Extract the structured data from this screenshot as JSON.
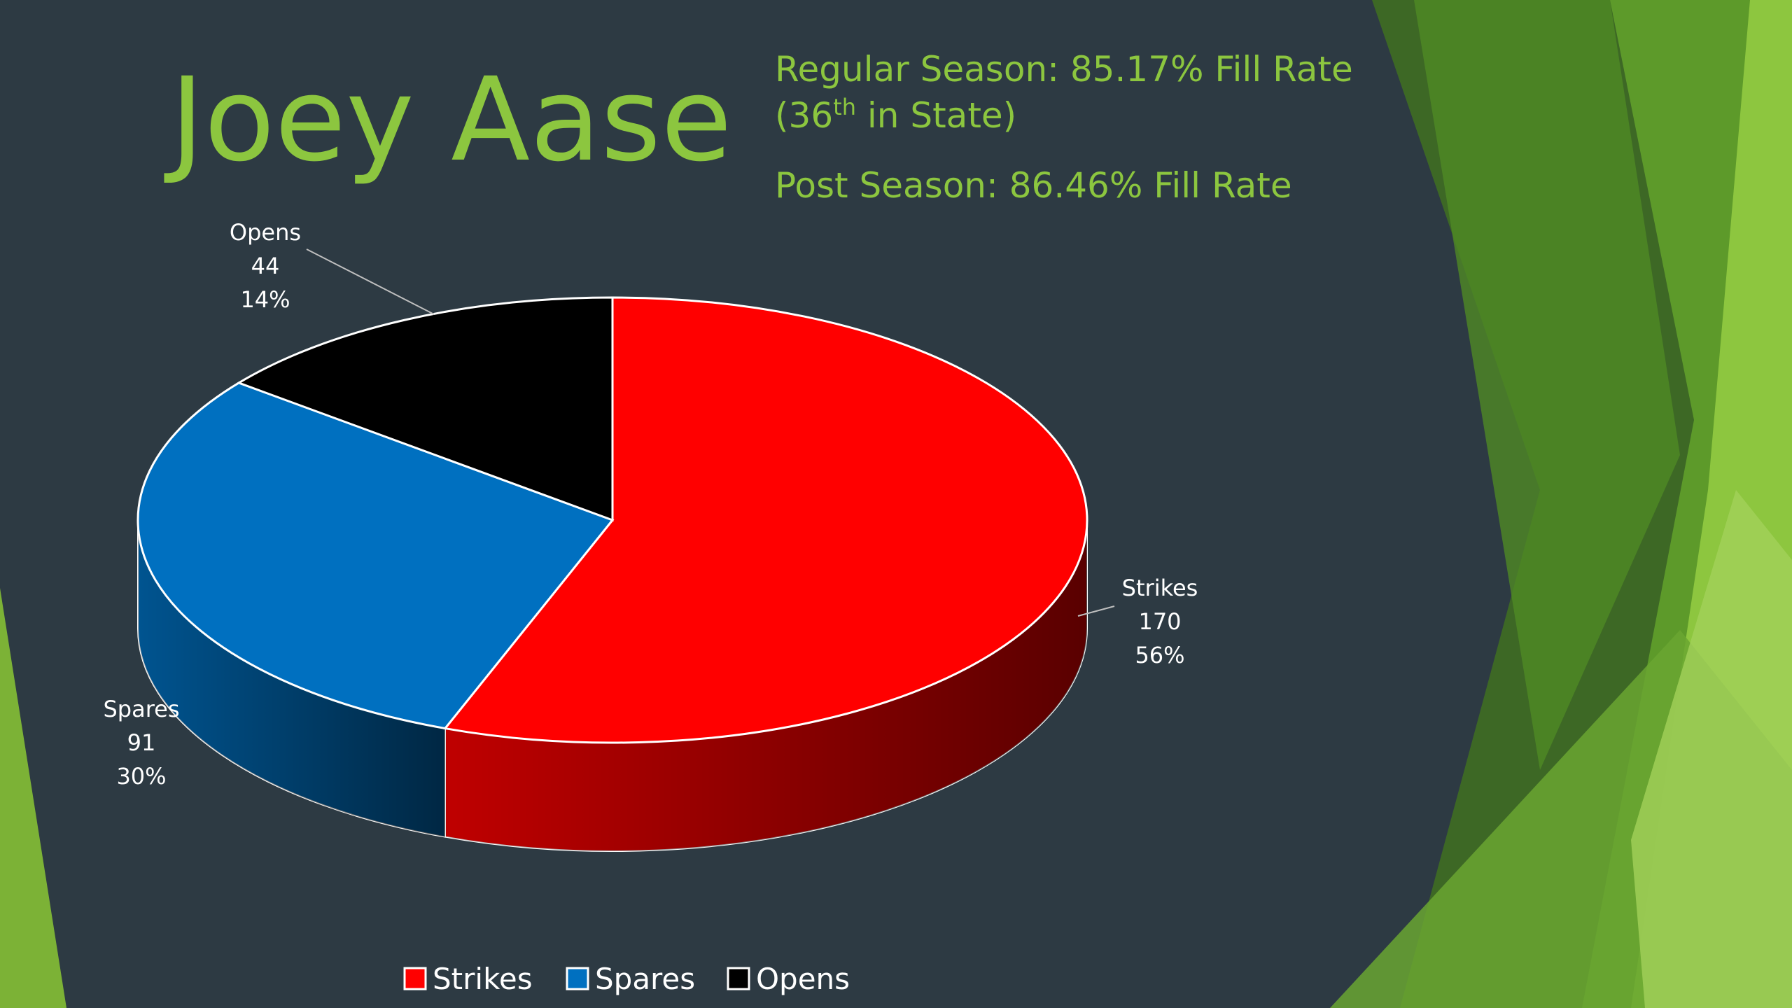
{
  "slide": {
    "title": "Joey Aase",
    "regular_season": "Regular Season: 85.17% Fill Rate",
    "rank_open": "(36",
    "rank_sup": "th",
    "rank_close": " in State)",
    "post_season": "Post Season: 86.46% Fill Rate"
  },
  "chart_data": {
    "type": "pie",
    "categories": [
      "Strikes",
      "Spares",
      "Opens"
    ],
    "values": [
      170,
      91,
      44
    ],
    "percent_labels": [
      "56%",
      "30%",
      "14%"
    ],
    "colors": [
      "#ff0000",
      "#0070c0",
      "#000000"
    ],
    "legend": "bottom"
  }
}
